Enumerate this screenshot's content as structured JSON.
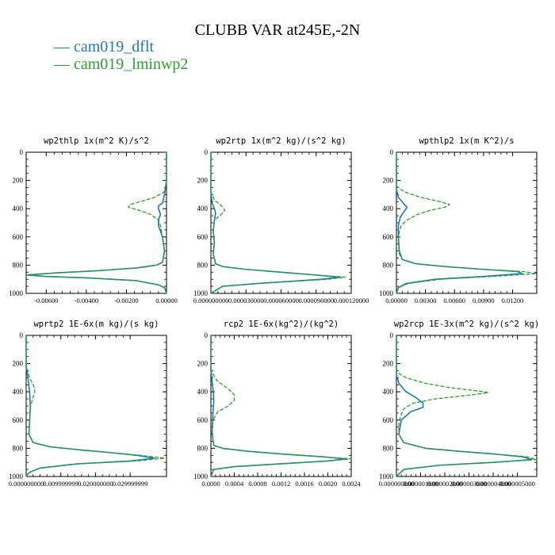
{
  "title": "CLUBB VAR at245E,-2N",
  "legend": [
    {
      "label": "cam019_dflt",
      "color": "#1f77b4",
      "dash": "solid"
    },
    {
      "label": "cam019_lminwp2",
      "color": "#2ca02c",
      "dash": "dashed"
    }
  ],
  "chart_data": [
    {
      "type": "line",
      "title": "wp2thlp   1x(m^2 K)/s^2",
      "ylim": [
        1000,
        0
      ],
      "yticks": [
        "0",
        "200",
        "400",
        "600",
        "800",
        "1000"
      ],
      "xlim": [
        -0.007,
        0.0
      ],
      "xticks": [
        {
          "v": -0.006,
          "label": "-0.00600"
        },
        {
          "v": -0.004,
          "label": "-0.00400"
        },
        {
          "v": -0.002,
          "label": "-0.00200"
        },
        {
          "v": 0.0,
          "label": "0.00000"
        }
      ],
      "series": [
        {
          "name": "cam019_dflt",
          "y": [
            0,
            200,
            300,
            360,
            380,
            400,
            440,
            480,
            520,
            600,
            700,
            780,
            800,
            820,
            840,
            855,
            870,
            880,
            890,
            910,
            940,
            960,
            1000
          ],
          "x": [
            0.0,
            0.0,
            -0.0001,
            -0.0002,
            -0.0004,
            -0.0004,
            -0.0003,
            -0.0004,
            -0.0004,
            -0.0002,
            -0.0001,
            -0.0002,
            -0.0005,
            -0.0015,
            -0.0035,
            -0.0055,
            -0.007,
            -0.006,
            -0.004,
            -0.0015,
            -0.0004,
            -0.0001,
            0.0
          ]
        },
        {
          "name": "cam019_lminwp2",
          "y": [
            0,
            200,
            280,
            320,
            350,
            370,
            390,
            410,
            440,
            480,
            520,
            600,
            700,
            780,
            800,
            820,
            840,
            855,
            870,
            880,
            890,
            910,
            940,
            960,
            1000
          ],
          "x": [
            0.0,
            0.0,
            -0.0001,
            -0.0006,
            -0.0013,
            -0.0018,
            -0.0019,
            -0.0014,
            -0.0008,
            -0.0004,
            -0.0003,
            -0.0002,
            -0.0001,
            -0.0002,
            -0.0005,
            -0.0015,
            -0.0035,
            -0.0055,
            -0.0069,
            -0.006,
            -0.004,
            -0.0015,
            -0.0004,
            -0.0001,
            0.0
          ]
        }
      ]
    },
    {
      "type": "line",
      "title": "wp2rtp   1x(m^2 kg)/(s^2 kg)",
      "ylim": [
        1000,
        0
      ],
      "yticks": [
        "0",
        "200",
        "400",
        "600",
        "800",
        "1000"
      ],
      "xlim": [
        0.0,
        0.00012
      ],
      "xticks": [
        {
          "v": 0.0,
          "label": "0.000000000"
        },
        {
          "v": 3e-05,
          "label": "0.000030000"
        },
        {
          "v": 6e-05,
          "label": "0.000060000"
        },
        {
          "v": 9e-05,
          "label": "0.000090000"
        },
        {
          "v": 0.00012,
          "label": "0.000120000"
        }
      ],
      "series": [
        {
          "name": "cam019_dflt",
          "y": [
            0,
            280,
            360,
            400,
            430,
            480,
            560,
            640,
            720,
            790,
            810,
            830,
            850,
            870,
            885,
            900,
            930,
            950,
            970,
            990,
            1000
          ],
          "x": [
            0.0,
            0.0,
            1e-06,
            3e-06,
            4e-06,
            3e-06,
            2e-06,
            3e-06,
            2e-06,
            4e-06,
            1e-05,
            3e-05,
            6e-05,
            9e-05,
            0.00011,
            9.5e-05,
            4e-05,
            1e-05,
            6e-06,
            2e-06,
            0.0
          ]
        },
        {
          "name": "cam019_lminwp2",
          "y": [
            0,
            280,
            340,
            380,
            410,
            440,
            480,
            560,
            640,
            720,
            790,
            810,
            830,
            850,
            870,
            885,
            900,
            930,
            950,
            970,
            990,
            1000
          ],
          "x": [
            0.0,
            0.0,
            3e-06,
            9e-06,
            1.2e-05,
            9e-06,
            3e-06,
            2e-06,
            3e-06,
            2e-06,
            4e-06,
            1e-05,
            3e-05,
            6e-05,
            9e-05,
            0.000115,
            0.0001,
            4e-05,
            1e-05,
            6e-06,
            2e-06,
            0.0
          ]
        }
      ]
    },
    {
      "type": "line",
      "title": "wpthlp2   1x(m K^2)/s",
      "ylim": [
        1000,
        0
      ],
      "yticks": [
        "0",
        "200",
        "400",
        "600",
        "800",
        "1000"
      ],
      "xlim": [
        0.0,
        0.0145
      ],
      "xticks": [
        {
          "v": 0.0,
          "label": "0.00000"
        },
        {
          "v": 0.003,
          "label": "0.00300"
        },
        {
          "v": 0.006,
          "label": "0.00600"
        },
        {
          "v": 0.009,
          "label": "0.00900"
        },
        {
          "v": 0.012,
          "label": "0.01200"
        }
      ],
      "series": [
        {
          "name": "cam019_dflt",
          "y": [
            0,
            260,
            320,
            360,
            390,
            420,
            460,
            520,
            600,
            700,
            760,
            790,
            810,
            830,
            845,
            860,
            880,
            900,
            930,
            960,
            1000
          ],
          "x": [
            0.0,
            0.0,
            0.0002,
            0.0007,
            0.0011,
            0.0008,
            0.0004,
            0.0002,
            0.0002,
            0.0003,
            0.0006,
            0.002,
            0.005,
            0.009,
            0.0125,
            0.013,
            0.009,
            0.004,
            0.001,
            0.0002,
            0.0
          ]
        },
        {
          "name": "cam019_lminwp2",
          "y": [
            0,
            240,
            280,
            320,
            350,
            370,
            390,
            410,
            440,
            480,
            520,
            560,
            640,
            720,
            760,
            790,
            810,
            830,
            845,
            860,
            880,
            900,
            930,
            960,
            1000
          ],
          "x": [
            0.0,
            0.0,
            0.0008,
            0.0025,
            0.0045,
            0.0055,
            0.005,
            0.0036,
            0.0022,
            0.0011,
            0.0005,
            0.0003,
            0.0002,
            0.0003,
            0.0006,
            0.002,
            0.005,
            0.009,
            0.013,
            0.0145,
            0.01,
            0.0045,
            0.0012,
            0.0002,
            0.0
          ]
        }
      ]
    },
    {
      "type": "line",
      "title": "wprtp2   1E-6x(m kg)/(s kg)",
      "ylim": [
        1000,
        0
      ],
      "yticks": [
        "0",
        "200",
        "400",
        "600",
        "800",
        "1000"
      ],
      "xlim": [
        0.0,
        0.0405
      ],
      "xticks": [
        {
          "v": 0.0,
          "label": "0.000000000"
        },
        {
          "v": 0.01,
          "label": "0.009999999"
        },
        {
          "v": 0.02,
          "label": "0.020000000"
        },
        {
          "v": 0.03,
          "label": "0.029999999"
        }
      ],
      "series": [
        {
          "name": "cam019_dflt",
          "y": [
            0,
            220,
            300,
            400,
            500,
            600,
            700,
            760,
            790,
            810,
            830,
            850,
            870,
            890,
            910,
            940,
            970,
            990,
            1000
          ],
          "x": [
            0.0,
            0.0,
            0.0005,
            0.001,
            0.0012,
            0.001,
            0.0008,
            0.002,
            0.007,
            0.015,
            0.024,
            0.032,
            0.037,
            0.03,
            0.015,
            0.004,
            0.001,
            0.0002,
            0.0
          ]
        },
        {
          "name": "cam019_lminwp2",
          "y": [
            0,
            220,
            300,
            360,
            400,
            440,
            500,
            600,
            700,
            760,
            790,
            810,
            830,
            850,
            870,
            890,
            910,
            940,
            970,
            990,
            1000
          ],
          "x": [
            0.0,
            0.0,
            0.001,
            0.0022,
            0.0025,
            0.002,
            0.0013,
            0.001,
            0.0008,
            0.002,
            0.007,
            0.015,
            0.024,
            0.033,
            0.04,
            0.032,
            0.015,
            0.004,
            0.001,
            0.0002,
            0.0
          ]
        }
      ]
    },
    {
      "type": "line",
      "title": "rcp2   1E-6x(kg^2)/(kg^2)",
      "ylim": [
        1000,
        0
      ],
      "yticks": [
        "0",
        "200",
        "400",
        "600",
        "800",
        "1000"
      ],
      "xlim": [
        0.0,
        0.0024
      ],
      "xticks": [
        {
          "v": 0.0,
          "label": "0.0000"
        },
        {
          "v": 0.0004,
          "label": "0.0004"
        },
        {
          "v": 0.0008,
          "label": "0.0008"
        },
        {
          "v": 0.0012,
          "label": "0.0012"
        },
        {
          "v": 0.0016,
          "label": "0.0016"
        },
        {
          "v": 0.002,
          "label": "0.0020"
        },
        {
          "v": 0.0024,
          "label": "0.0024"
        }
      ],
      "series": [
        {
          "name": "cam019_dflt",
          "y": [
            0,
            250,
            320,
            400,
            460,
            520,
            600,
            700,
            780,
            800,
            820,
            840,
            860,
            875,
            890,
            910,
            930,
            950,
            1000
          ],
          "x": [
            0.0,
            0.0,
            2e-05,
            4e-05,
            5e-05,
            4e-05,
            3e-05,
            2e-05,
            5e-05,
            0.0002,
            0.0006,
            0.0012,
            0.0019,
            0.0023,
            0.002,
            0.0012,
            0.0004,
            5e-05,
            0.0
          ]
        },
        {
          "name": "cam019_lminwp2",
          "y": [
            0,
            250,
            320,
            380,
            420,
            460,
            500,
            540,
            600,
            700,
            780,
            800,
            820,
            840,
            860,
            875,
            890,
            910,
            930,
            950,
            1000
          ],
          "x": [
            0.0,
            0.0,
            0.0001,
            0.0003,
            0.0004,
            0.0004,
            0.0003,
            0.00012,
            3e-05,
            2e-05,
            5e-05,
            0.0002,
            0.0006,
            0.0012,
            0.0019,
            0.0024,
            0.002,
            0.0012,
            0.0004,
            5e-05,
            0.0
          ]
        }
      ]
    },
    {
      "type": "line",
      "title": "wp2rcp   1E-3x(m^2 kg)/(s^2 kg)",
      "ylim": [
        1000,
        0
      ],
      "yticks": [
        "0",
        "200",
        "400",
        "600",
        "800",
        "1000"
      ],
      "xlim": [
        0.0,
        5.8e-06
      ],
      "xticks": [
        {
          "v": 0.0,
          "label": "0.000000000"
        },
        {
          "v": 1e-06,
          "label": "0.000001000"
        },
        {
          "v": 2e-06,
          "label": "0.000002000"
        },
        {
          "v": 3e-06,
          "label": "0.000003000"
        },
        {
          "v": 4e-06,
          "label": "0.000004000"
        },
        {
          "v": 5e-06,
          "label": "0.000005000"
        }
      ],
      "series": [
        {
          "name": "cam019_dflt",
          "y": [
            0,
            280,
            340,
            400,
            440,
            480,
            510,
            540,
            600,
            700,
            760,
            800,
            820,
            840,
            860,
            880,
            900,
            920,
            950,
            1000
          ],
          "x": [
            0.0,
            0.0,
            1e-07,
            4e-07,
            8e-07,
            1.1e-06,
            1.1e-06,
            6e-07,
            2e-07,
            1e-07,
            3e-07,
            1.2e-06,
            2.5e-06,
            4e-06,
            5.2e-06,
            5.6e-06,
            4e-06,
            1.8e-06,
            3e-07,
            0.0
          ]
        },
        {
          "name": "cam019_lminwp2",
          "y": [
            0,
            260,
            300,
            340,
            370,
            390,
            405,
            420,
            450,
            480,
            520,
            560,
            620,
            700,
            760,
            800,
            820,
            840,
            860,
            880,
            900,
            920,
            950,
            1000
          ],
          "x": [
            0.0,
            0.0,
            4e-07,
            1.2e-06,
            2.2e-06,
            3.2e-06,
            3.8e-06,
            3.2e-06,
            1.6e-06,
            7e-07,
            3e-07,
            2e-07,
            1e-07,
            1e-07,
            3e-07,
            1.2e-06,
            2.5e-06,
            4e-06,
            5.4e-06,
            5.8e-06,
            4e-06,
            1.8e-06,
            3e-07,
            0.0
          ]
        }
      ]
    }
  ]
}
